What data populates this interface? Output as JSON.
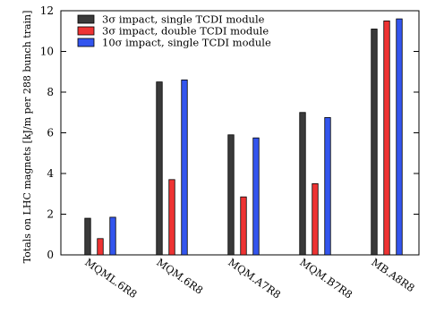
{
  "chart_data": {
    "type": "bar",
    "categories": [
      "MQML.6R8",
      "MQM.6R8",
      "MQM.A7R8",
      "MQM.B7R8",
      "MB.A8R8"
    ],
    "series": [
      {
        "name": "3σ impact, single TCDI module",
        "color": "#3a3a3a",
        "values": [
          1.8,
          8.5,
          5.9,
          7.0,
          11.1
        ]
      },
      {
        "name": "3σ impact, double TCDI module",
        "color": "#ee3333",
        "values": [
          0.8,
          3.7,
          2.85,
          3.5,
          11.5
        ]
      },
      {
        "name": "10σ impact, single TCDI module",
        "color": "#3355ee",
        "values": [
          1.85,
          8.6,
          5.75,
          6.75,
          11.6
        ]
      }
    ],
    "ylabel": "Totals on LHC magnets [kJ/m per 288 bunch train]",
    "xlabel": "",
    "ylim": [
      0,
      12
    ],
    "yticks": [
      0,
      2,
      4,
      6,
      8,
      10,
      12
    ],
    "legend_position": "top-left",
    "grid": false
  }
}
